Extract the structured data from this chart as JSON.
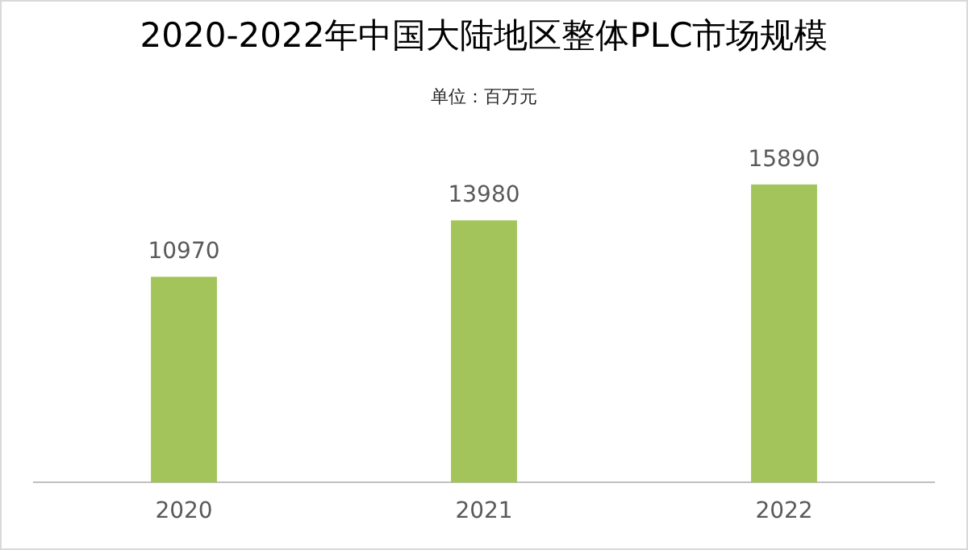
{
  "chart_data": {
    "type": "bar",
    "title": "2020-2022年中国大陆地区整体PLC市场规模",
    "subtitle": "单位：百万元",
    "categories": [
      "2020",
      "2021",
      "2022"
    ],
    "values": [
      10970,
      13980,
      15890
    ],
    "color": "#a2c45a",
    "data_labels": true,
    "grid": false,
    "legend": false
  }
}
